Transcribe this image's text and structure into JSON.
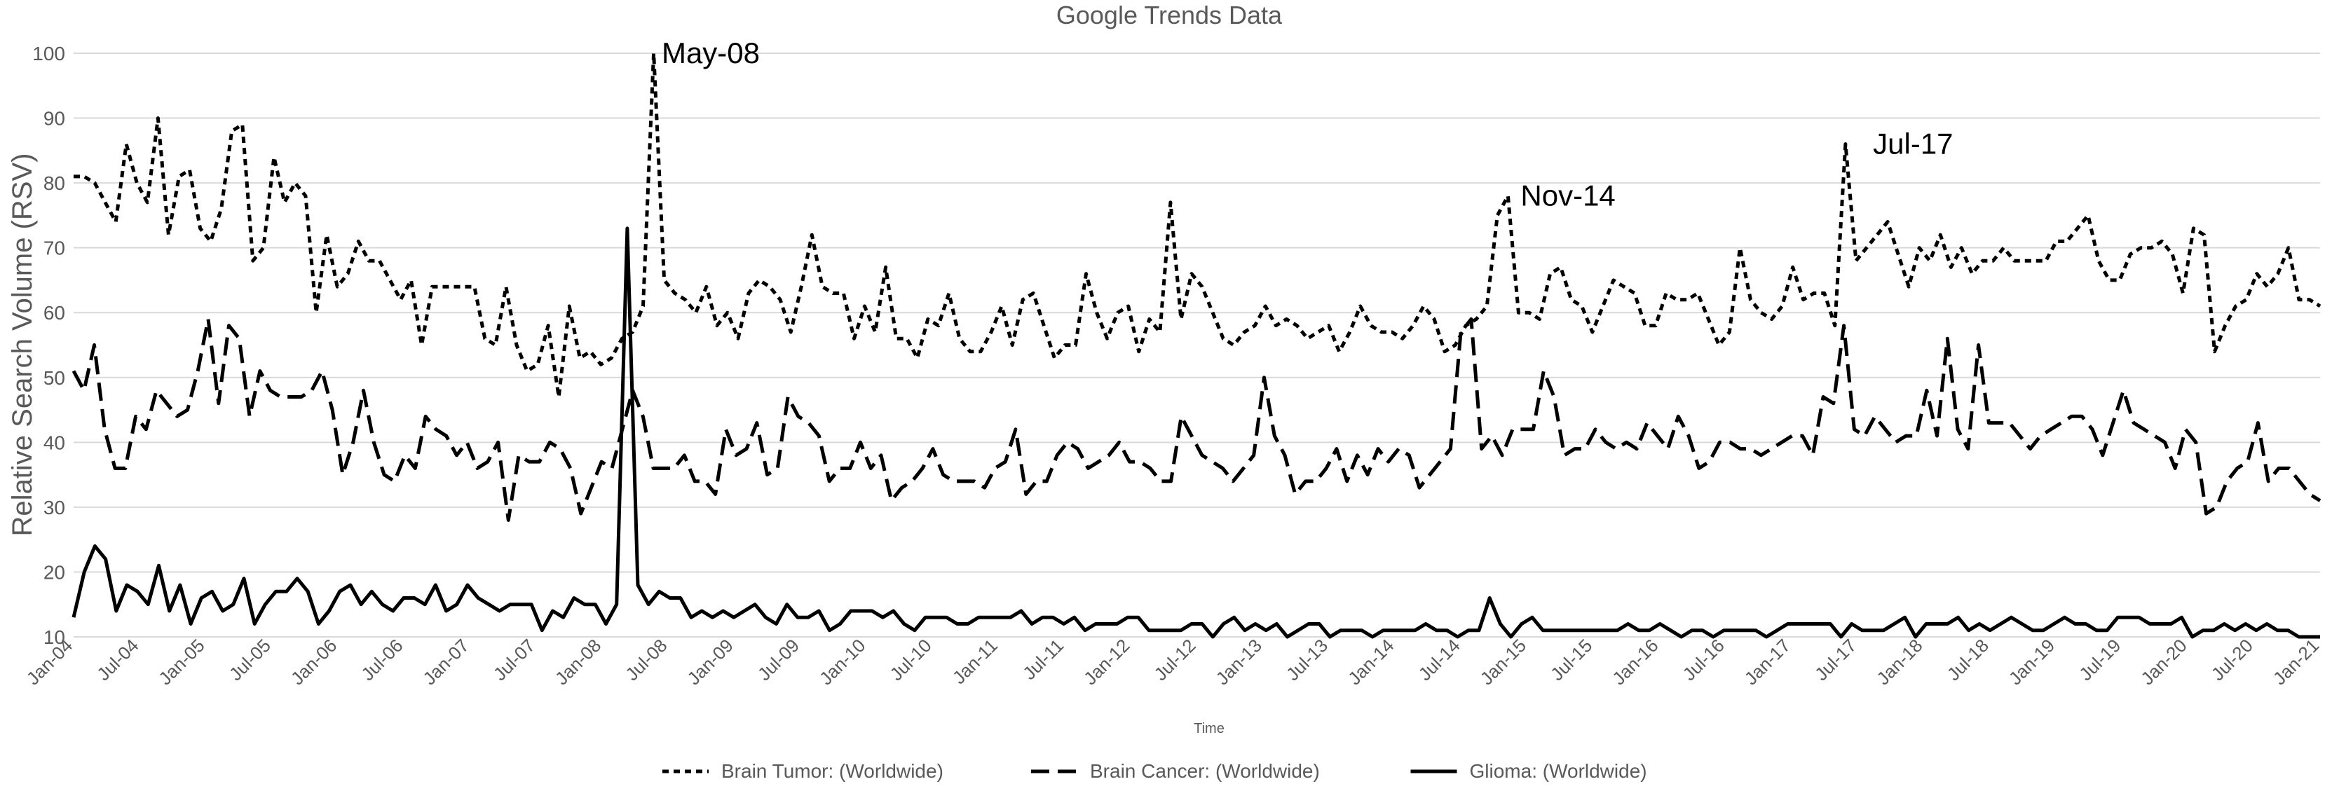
{
  "chart_data": {
    "type": "line",
    "title": "Google Trends Data",
    "xlabel": "Time",
    "ylabel": "Relative Search Volume (RSV)",
    "ylim": [
      10,
      100
    ],
    "yticks": [
      10,
      20,
      30,
      40,
      50,
      60,
      70,
      80,
      90,
      100
    ],
    "xlim": [
      "2004-01",
      "2021-01"
    ],
    "x_tick_labels": [
      "Jan-04",
      "Jul-04",
      "Jan-05",
      "Jul-05",
      "Jan-06",
      "Jul-06",
      "Jan-07",
      "Jul-07",
      "Jan-08",
      "Jul-08",
      "Jan-09",
      "Jul-09",
      "Jan-10",
      "Jul-10",
      "Jan-11",
      "Jul-11",
      "Jan-12",
      "Jul-12",
      "Jan-13",
      "Jul-13",
      "Jan-14",
      "Jul-14",
      "Jan-15",
      "Jul-15",
      "Jan-16",
      "Jul-16",
      "Jan-17",
      "Jul-17",
      "Jan-18",
      "Jul-18",
      "Jan-19",
      "Jul-19",
      "Jan-20",
      "Jul-20",
      "Jan-21"
    ],
    "grid": "horizontal",
    "legend_position": "bottom",
    "series": [
      {
        "name": "Brain Tumor: (Worldwide)",
        "style": "dotted",
        "values": [
          81,
          81,
          80,
          77,
          74,
          86,
          80,
          77,
          90,
          72,
          81,
          82,
          73,
          71,
          76,
          88,
          89,
          68,
          70,
          84,
          77,
          80,
          78,
          60,
          72,
          64,
          66,
          71,
          68,
          68,
          65,
          62,
          65,
          55,
          64,
          64,
          64,
          64,
          64,
          56,
          55,
          64,
          55,
          51,
          52,
          58,
          47,
          61,
          53,
          54,
          52,
          53,
          56,
          57,
          61,
          100,
          65,
          63,
          62,
          60,
          64,
          58,
          60,
          56,
          63,
          65,
          64,
          62,
          57,
          64,
          72,
          64,
          63,
          63,
          56,
          61,
          57,
          67,
          56,
          56,
          53,
          59,
          58,
          63,
          56,
          54,
          54,
          57,
          61,
          55,
          62,
          63,
          58,
          53,
          55,
          55,
          66,
          60,
          56,
          60,
          61,
          54,
          59,
          57,
          77,
          59,
          66,
          64,
          60,
          56,
          55,
          57,
          58,
          61,
          58,
          59,
          58,
          56,
          57,
          58,
          54,
          57,
          61,
          58,
          57,
          57,
          56,
          58,
          61,
          59,
          54,
          55,
          58,
          59,
          61,
          75,
          78,
          60,
          60,
          59,
          66,
          67,
          62,
          61,
          57,
          61,
          65,
          64,
          63,
          58,
          58,
          63,
          62,
          62,
          63,
          59,
          55,
          57,
          70,
          62,
          60,
          59,
          61,
          67,
          62,
          63,
          63,
          58,
          86,
          68,
          70,
          72,
          74,
          69,
          64,
          70,
          68,
          72,
          67,
          70,
          66,
          68,
          68,
          70,
          68,
          68,
          68,
          68,
          71,
          71,
          73,
          75,
          68,
          65,
          65,
          69,
          70,
          70,
          71,
          69,
          63,
          73,
          72,
          54,
          58,
          61,
          62,
          66,
          64,
          66,
          70,
          62,
          62,
          61
        ]
      },
      {
        "name": "Brain Cancer: (Worldwide)",
        "style": "dashed",
        "values": [
          51,
          48,
          55,
          42,
          36,
          36,
          44,
          42,
          48,
          46,
          44,
          45,
          51,
          59,
          46,
          58,
          56,
          44,
          51,
          48,
          47,
          47,
          47,
          48,
          51,
          45,
          35,
          40,
          48,
          40,
          35,
          34,
          38,
          36,
          44,
          42,
          41,
          38,
          40,
          36,
          37,
          40,
          28,
          38,
          37,
          37,
          40,
          39,
          36,
          29,
          33,
          37,
          36,
          42,
          48,
          44,
          36,
          36,
          36,
          38,
          34,
          34,
          32,
          42,
          38,
          39,
          43,
          35,
          36,
          47,
          44,
          43,
          41,
          34,
          36,
          36,
          40,
          36,
          38,
          31,
          33,
          34,
          36,
          39,
          35,
          34,
          34,
          34,
          33,
          36,
          37,
          42,
          32,
          34,
          34,
          38,
          40,
          39,
          36,
          37,
          38,
          40,
          37,
          37,
          36,
          34,
          34,
          44,
          41,
          38,
          37,
          36,
          34,
          36,
          38,
          50,
          41,
          38,
          32,
          34,
          34,
          36,
          39,
          34,
          38,
          35,
          39,
          37,
          39,
          38,
          33,
          35,
          37,
          39,
          57,
          59,
          39,
          41,
          38,
          42,
          42,
          42,
          51,
          47,
          38,
          39,
          39,
          42,
          40,
          39,
          40,
          39,
          43,
          41,
          39,
          44,
          41,
          36,
          37,
          40,
          40,
          39,
          39,
          38,
          39,
          40,
          41,
          41,
          38,
          47,
          46,
          58,
          42,
          41,
          44,
          42,
          40,
          41,
          41,
          48,
          41,
          56,
          42,
          39,
          55,
          43,
          43,
          43,
          41,
          39,
          41,
          42,
          43,
          44,
          44,
          42,
          38,
          43,
          48,
          43,
          42,
          41,
          40,
          36,
          42,
          40,
          29,
          30,
          34,
          36,
          37,
          43,
          34,
          36,
          36,
          34,
          32,
          31
        ]
      },
      {
        "name": "Glioma: (Worldwide)",
        "style": "solid",
        "values": [
          13,
          20,
          24,
          22,
          14,
          18,
          17,
          15,
          21,
          14,
          18,
          12,
          16,
          17,
          14,
          15,
          19,
          12,
          15,
          17,
          17,
          19,
          17,
          12,
          14,
          17,
          18,
          15,
          17,
          15,
          14,
          16,
          16,
          15,
          18,
          14,
          15,
          18,
          16,
          15,
          14,
          15,
          15,
          15,
          11,
          14,
          13,
          16,
          15,
          15,
          12,
          15,
          73,
          18,
          15,
          17,
          16,
          16,
          13,
          14,
          13,
          14,
          13,
          14,
          15,
          13,
          12,
          15,
          13,
          13,
          14,
          11,
          12,
          14,
          14,
          14,
          13,
          14,
          12,
          11,
          13,
          13,
          13,
          12,
          12,
          13,
          13,
          13,
          13,
          14,
          12,
          13,
          13,
          12,
          13,
          11,
          12,
          12,
          12,
          13,
          13,
          11,
          11,
          11,
          11,
          12,
          12,
          10,
          12,
          13,
          11,
          12,
          11,
          12,
          10,
          11,
          12,
          12,
          10,
          11,
          11,
          11,
          10,
          11,
          11,
          11,
          11,
          12,
          11,
          11,
          10,
          11,
          11,
          16,
          12,
          10,
          12,
          13,
          11,
          11,
          11,
          11,
          11,
          11,
          11,
          11,
          12,
          11,
          11,
          12,
          11,
          10,
          11,
          11,
          10,
          11,
          11,
          11,
          11,
          10,
          11,
          12,
          12,
          12,
          12,
          12,
          10,
          12,
          11,
          11,
          11,
          12,
          13,
          10,
          12,
          12,
          12,
          13,
          11,
          12,
          11,
          12,
          13,
          12,
          11,
          11,
          12,
          13,
          12,
          12,
          11,
          11,
          13,
          13,
          13,
          12,
          12,
          12,
          13,
          10,
          11,
          11,
          12,
          11,
          12,
          11,
          12,
          11,
          11,
          10,
          10,
          10
        ]
      }
    ],
    "annotations": [
      {
        "text": "May-08",
        "x": "2008-05",
        "y": 100
      },
      {
        "text": "Nov-14",
        "x": "2014-11",
        "y": 78
      },
      {
        "text": "Jul-17",
        "x": "2017-07",
        "y": 86
      }
    ]
  }
}
